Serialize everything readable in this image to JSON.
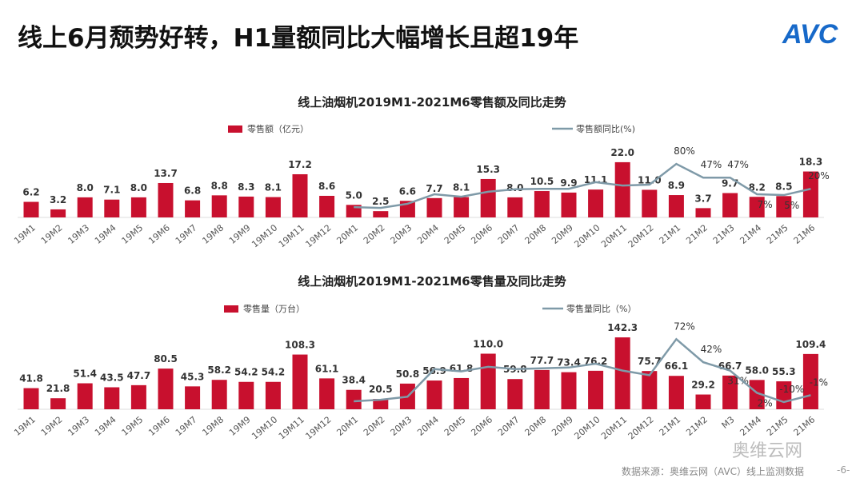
{
  "header": {
    "title": "线上6月颓势好转，H1量额同比大幅增长且超19年",
    "logo": "AVC"
  },
  "footer": {
    "source": "数据来源：奥维云网（AVC）线上监测数据",
    "page": "-6-",
    "watermark": "奥维云网"
  },
  "colors": {
    "bar": "#c8102e",
    "line": "#7f9aa8"
  },
  "chart_data": [
    {
      "type": "bar+line",
      "title": "线上油烟机2019M1-2021M6零售额及同比走势",
      "categories": [
        "19M1",
        "19M2",
        "19M3",
        "19M4",
        "19M5",
        "19M6",
        "19M7",
        "19M8",
        "19M9",
        "19M10",
        "19M11",
        "19M12",
        "20M1",
        "20M2",
        "20M3",
        "20M4",
        "20M5",
        "20M6",
        "20M7",
        "20M8",
        "20M9",
        "20M10",
        "20M11",
        "20M12",
        "21M1",
        "21M2",
        "21M3",
        "21M4",
        "21M5",
        "21M6"
      ],
      "series": [
        {
          "name": "零售额（亿元）",
          "type": "bar",
          "values": [
            6.2,
            3.2,
            8.0,
            7.1,
            8.0,
            13.7,
            6.8,
            8.8,
            8.3,
            8.1,
            17.2,
            8.6,
            5.0,
            2.5,
            6.6,
            7.7,
            8.1,
            15.3,
            8.0,
            10.5,
            9.9,
            11.1,
            22.0,
            11.0,
            8.9,
            3.7,
            9.7,
            8.2,
            8.5,
            18.3
          ],
          "labels": [
            "6.2",
            "3.2",
            "8.0",
            "7.1",
            "8.0",
            "13.7",
            "6.8",
            "8.8",
            "8.3",
            "8.1",
            "17.2",
            "8.6",
            "5.0",
            "2.5",
            "6.6",
            "7.7",
            "8.1",
            "15.3",
            "8.0",
            "10.5",
            "9.9",
            "11.1",
            "22.0",
            "11.0",
            "8.9",
            "3.7",
            "9.7",
            "8.2",
            "8.5",
            "18.3"
          ]
        },
        {
          "name": "零售额同比(%)",
          "type": "line",
          "values": [
            null,
            null,
            null,
            null,
            null,
            null,
            null,
            null,
            null,
            null,
            null,
            null,
            -24,
            -26,
            -16,
            7,
            1,
            13,
            19,
            20,
            20,
            36,
            28,
            30,
            80,
            47,
            47,
            7,
            5,
            20
          ],
          "labels": [
            "",
            "",
            "",
            "",
            "",
            "",
            "",
            "",
            "",
            "",
            "",
            "",
            "",
            "",
            "",
            "",
            "",
            "",
            "",
            "",
            "",
            "",
            "",
            "",
            "80%",
            "47%",
            "47%",
            "7%",
            "5%",
            "20%"
          ]
        }
      ],
      "legend": "top"
    },
    {
      "type": "bar+line",
      "title": "线上油烟机2019M1-2021M6零售量及同比走势",
      "categories": [
        "19M1",
        "19M2",
        "19M3",
        "19M4",
        "19M5",
        "19M6",
        "19M7",
        "19M8",
        "19M9",
        "19M10",
        "19M11",
        "19M12",
        "20M1",
        "20M2",
        "20M3",
        "20M4",
        "20M5",
        "20M6",
        "20M7",
        "20M8",
        "20M9",
        "20M10",
        "20M11",
        "20M12",
        "21M1",
        "21M2",
        "M3",
        "21M4",
        "21M5",
        "21M6"
      ],
      "series": [
        {
          "name": "零售量（万台）",
          "type": "bar",
          "values": [
            41.8,
            21.8,
            51.4,
            43.5,
            47.7,
            80.5,
            45.3,
            58.2,
            54.2,
            54.2,
            108.3,
            61.1,
            38.4,
            20.5,
            50.8,
            56.9,
            61.8,
            110.0,
            59.8,
            77.7,
            73.4,
            76.2,
            142.3,
            75.7,
            66.1,
            29.2,
            66.7,
            58.0,
            55.3,
            109.4
          ],
          "labels": [
            "41.8",
            "21.8",
            "51.4",
            "43.5",
            "47.7",
            "80.5",
            "45.3",
            "58.2",
            "54.2",
            "54.2",
            "108.3",
            "61.1",
            "38.4",
            "20.5",
            "50.8",
            "56.9",
            "61.8",
            "110.0",
            "59.8",
            "77.7",
            "73.4",
            "76.2",
            "142.3",
            "75.7",
            "66.1",
            "29.2",
            "66.7",
            "58.0",
            "55.3",
            "109.4"
          ]
        },
        {
          "name": "零售量同比（%）",
          "type": "line",
          "values": [
            null,
            null,
            null,
            null,
            null,
            null,
            null,
            null,
            null,
            null,
            null,
            null,
            -9,
            -7,
            -3,
            33,
            30,
            36,
            33,
            34,
            35,
            40,
            31,
            25,
            72,
            42,
            31,
            2,
            -10,
            -1
          ],
          "labels": [
            "",
            "",
            "",
            "",
            "",
            "",
            "",
            "",
            "",
            "",
            "",
            "",
            "",
            "",
            "",
            "",
            "",
            "",
            "",
            "",
            "",
            "",
            "",
            "",
            "72%",
            "42%",
            "31%",
            "2%",
            "-10%",
            "-1%"
          ]
        }
      ],
      "legend": "top"
    }
  ]
}
